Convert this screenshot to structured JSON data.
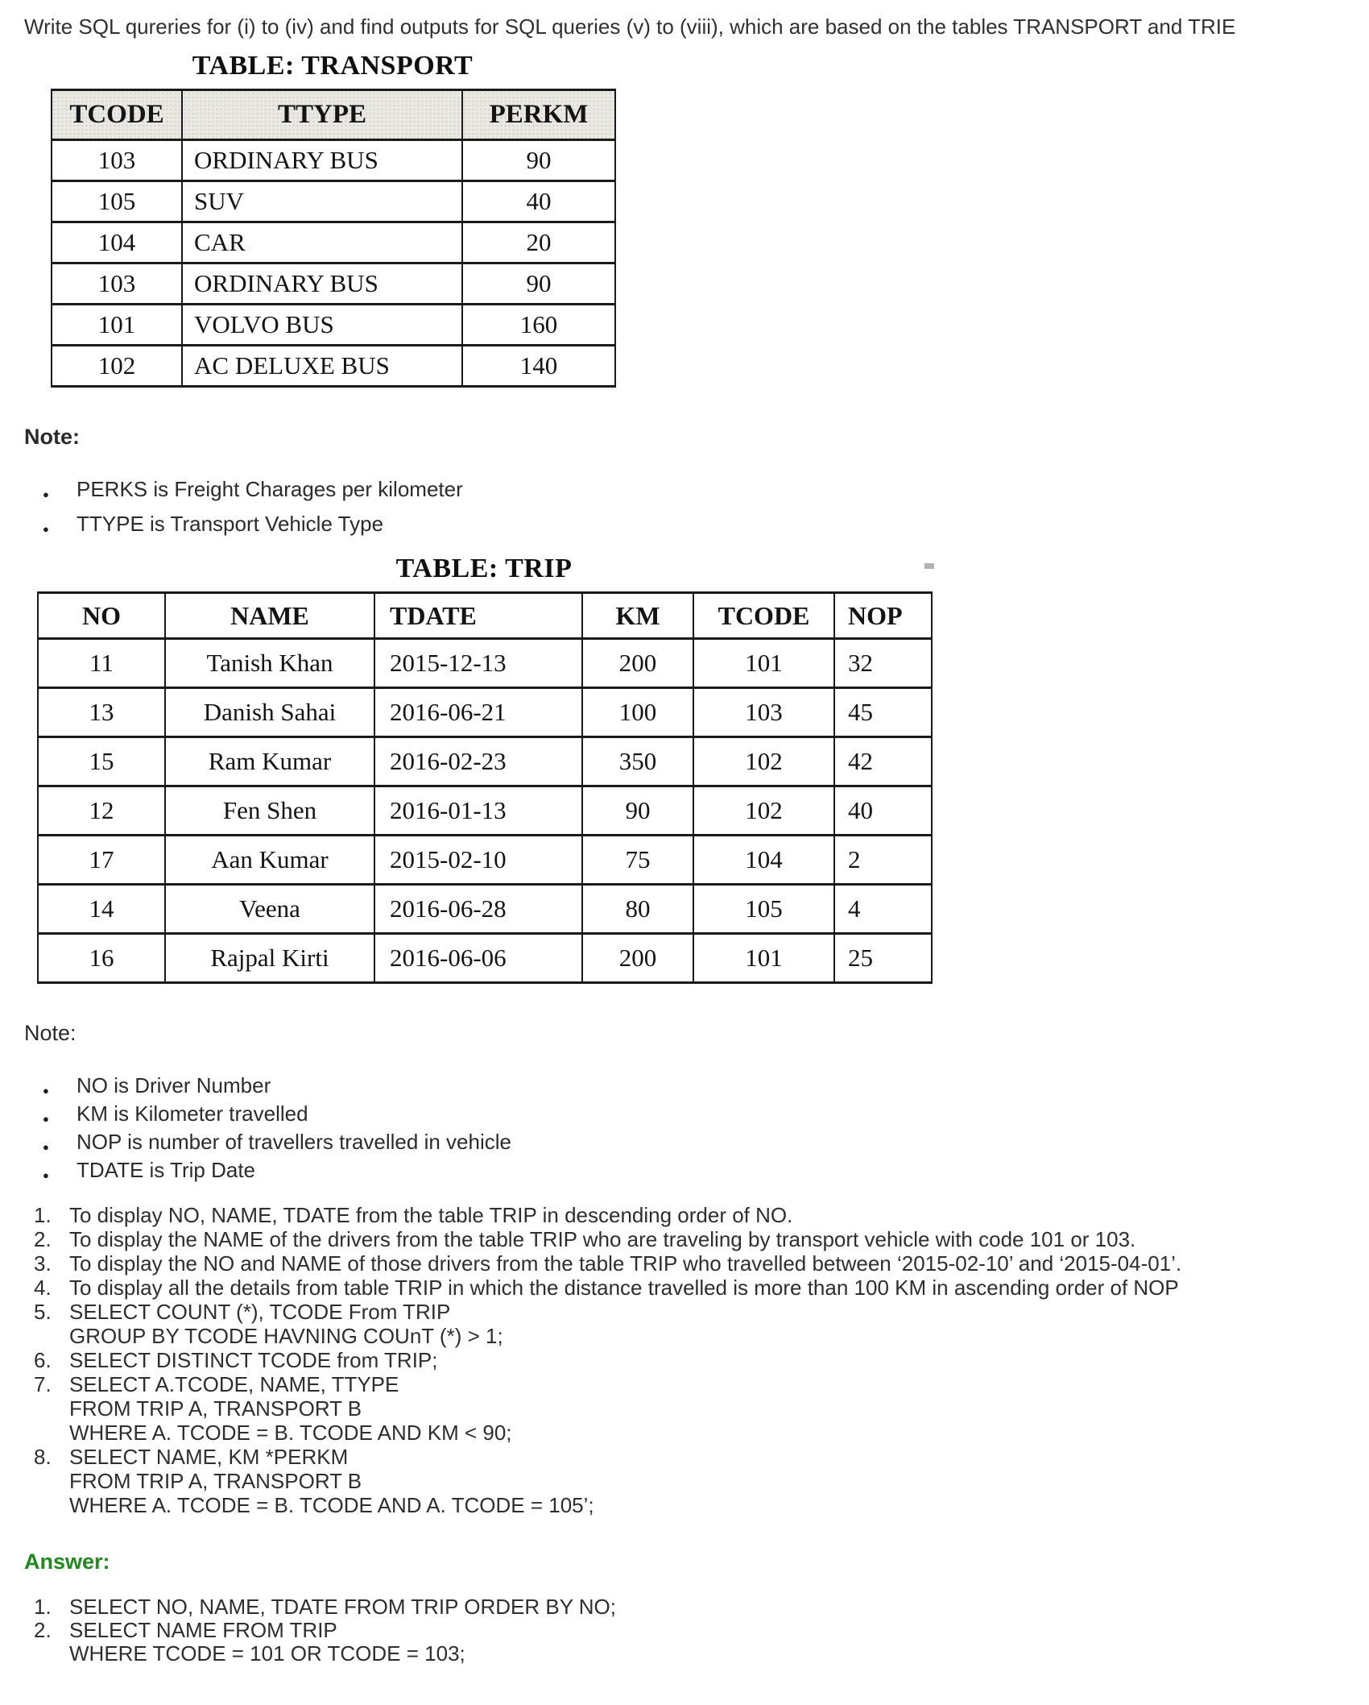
{
  "page": {
    "intro": "Write SQL qureries for (i) to (iv) and find outputs for SQL queries (v) to (viii), which are based on the tables TRANSPORT and TRIE"
  },
  "transport": {
    "title": "TABLE: TRANSPORT",
    "columns": [
      "TCODE",
      "TTYPE",
      "PERKM"
    ],
    "rows": [
      [
        "103",
        "ORDINARY BUS",
        "90"
      ],
      [
        "105",
        "SUV",
        "40"
      ],
      [
        "104",
        "CAR",
        "20"
      ],
      [
        "103",
        "ORDINARY BUS",
        "90"
      ],
      [
        "101",
        "VOLVO BUS",
        "160"
      ],
      [
        "102",
        "AC DELUXE BUS",
        "140"
      ]
    ]
  },
  "note1": {
    "label": "Note:",
    "items": [
      "PERKS is Freight Charages per kilometer",
      "TTYPE is Transport Vehicle Type"
    ]
  },
  "trip": {
    "title": "TABLE: TRIP",
    "columns": [
      "NO",
      "NAME",
      "TDATE",
      "KM",
      "TCODE",
      "NOP"
    ],
    "rows": [
      [
        "11",
        "Tanish Khan",
        "2015-12-13",
        "200",
        "101",
        "32"
      ],
      [
        "13",
        "Danish Sahai",
        "2016-06-21",
        "100",
        "103",
        "45"
      ],
      [
        "15",
        "Ram Kumar",
        "2016-02-23",
        "350",
        "102",
        "42"
      ],
      [
        "12",
        "Fen Shen",
        "2016-01-13",
        "90",
        "102",
        "40"
      ],
      [
        "17",
        "Aan Kumar",
        "2015-02-10",
        "75",
        "104",
        "2"
      ],
      [
        "14",
        "Veena",
        "2016-06-28",
        "80",
        "105",
        "4"
      ],
      [
        "16",
        "Rajpal Kirti",
        "2016-06-06",
        "200",
        "101",
        "25"
      ]
    ]
  },
  "note2": {
    "label": "Note:",
    "items": [
      "NO is Driver Number",
      "KM is Kilometer travelled",
      "NOP is number of travellers travelled in vehicle",
      "TDATE is Trip Date"
    ]
  },
  "questions": {
    "items": [
      [
        "To display NO, NAME, TDATE from the table TRIP in descending order of NO."
      ],
      [
        "To display the NAME of the drivers from the table TRIP who are traveling by transport vehicle with code 101 or 103."
      ],
      [
        "To display the NO and NAME of those drivers from the table TRIP who travelled between ‘2015-02-10’ and ‘2015-04-01’."
      ],
      [
        "To display all the details from table TRIP in which the distance travelled is more than 100 KM in ascending order of NOP"
      ],
      [
        "SELECT COUNT (*), TCODE From TRIP",
        "GROUP BY TCODE HAVNING COUnT (*) > 1;"
      ],
      [
        "SELECT DISTINCT TCODE from TRIP;"
      ],
      [
        "SELECT A.TCODE, NAME, TTYPE",
        "FROM TRIP A, TRANSPORT B",
        "WHERE A. TCODE = B. TCODE AND KM < 90;"
      ],
      [
        "SELECT NAME, KM *PERKM",
        "FROM TRIP A, TRANSPORT B",
        "WHERE A. TCODE = B. TCODE AND A. TCODE = 105’;"
      ]
    ]
  },
  "answer": {
    "label": "Answer:",
    "color": "#1e8a1e",
    "items": [
      [
        "SELECT NO, NAME, TDATE FROM TRIP ORDER BY NO;"
      ],
      [
        "SELECT NAME FROM TRIP",
        "WHERE TCODE = 101 OR TCODE = 103;"
      ]
    ]
  }
}
